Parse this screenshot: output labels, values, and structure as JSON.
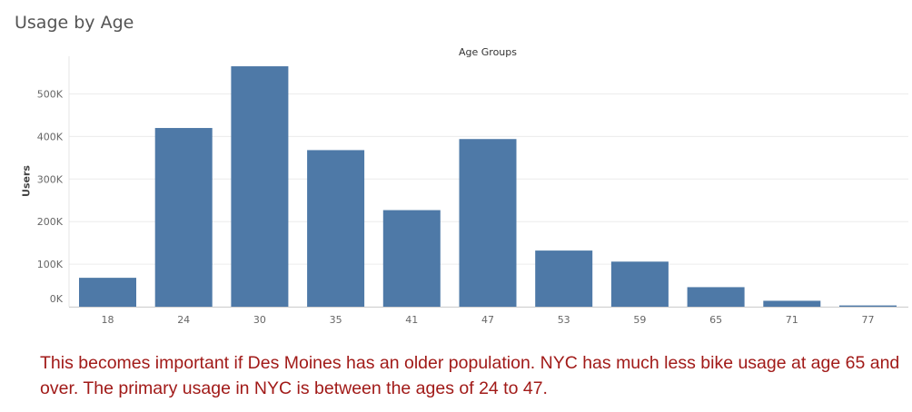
{
  "title": "Usage by Age",
  "annotation": "This becomes important if Des Moines has an older population.  NYC has much less bike usage at age 65 and over.  The primary usage in NYC is between the ages of 24 to 47.",
  "chart_data": {
    "type": "bar",
    "title": "Usage by Age",
    "xlabel": "Age Groups",
    "ylabel": "Users",
    "categories": [
      "18",
      "24",
      "30",
      "35",
      "41",
      "47",
      "53",
      "59",
      "65",
      "71",
      "77"
    ],
    "values": [
      68000,
      420000,
      565000,
      368000,
      227000,
      394000,
      132000,
      106000,
      46000,
      14000,
      3000
    ],
    "ylim": [
      0,
      580000
    ],
    "yticks": [
      0,
      100000,
      200000,
      300000,
      400000,
      500000
    ],
    "ytick_labels": [
      "0K",
      "100K",
      "200K",
      "300K",
      "400K",
      "500K"
    ],
    "bar_color": "#4e79a7",
    "grid": true,
    "annotation_color": "#a11a18"
  }
}
